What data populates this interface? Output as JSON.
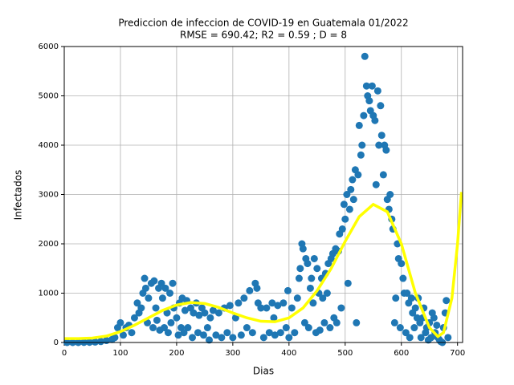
{
  "chart_data": {
    "type": "scatter",
    "title": "Prediccion de infeccion de COVID-19 en Guatemala 01/2022",
    "subtitle": "RMSE = 690.42; R2 = 0.59 ; D = 8",
    "x_label": "Dias",
    "y_label": "Infectados",
    "xlim": [
      0,
      709
    ],
    "ylim": [
      0,
      6000
    ],
    "xticks": [
      0,
      100,
      200,
      300,
      400,
      500,
      600,
      700
    ],
    "yticks": [
      0,
      1000,
      2000,
      3000,
      4000,
      5000,
      6000
    ],
    "grid": true,
    "series": [
      {
        "type": "scatter",
        "color": "#1f77b4",
        "x": [
          5,
          15,
          25,
          35,
          45,
          55,
          65,
          75,
          85,
          90,
          95,
          100,
          105,
          110,
          115,
          120,
          125,
          130,
          133,
          137,
          140,
          143,
          145,
          148,
          150,
          155,
          158,
          160,
          163,
          165,
          168,
          170,
          173,
          175,
          178,
          180,
          183,
          185,
          188,
          190,
          193,
          195,
          200,
          203,
          205,
          208,
          210,
          213,
          215,
          218,
          220,
          225,
          228,
          230,
          235,
          238,
          240,
          245,
          248,
          250,
          255,
          258,
          260,
          265,
          270,
          275,
          280,
          285,
          290,
          295,
          300,
          305,
          310,
          315,
          320,
          325,
          330,
          335,
          340,
          343,
          345,
          350,
          355,
          360,
          365,
          370,
          373,
          375,
          380,
          385,
          390,
          395,
          398,
          400,
          405,
          410,
          415,
          418,
          420,
          423,
          425,
          428,
          430,
          433,
          435,
          438,
          440,
          443,
          445,
          448,
          450,
          453,
          455,
          458,
          460,
          463,
          465,
          468,
          470,
          473,
          475,
          478,
          480,
          483,
          485,
          488,
          490,
          493,
          495,
          498,
          500,
          503,
          505,
          508,
          510,
          513,
          515,
          518,
          520,
          523,
          525,
          528,
          530,
          533,
          535,
          538,
          540,
          543,
          545,
          548,
          550,
          553,
          555,
          558,
          560,
          563,
          565,
          568,
          570,
          573,
          575,
          578,
          580,
          583,
          585,
          588,
          590,
          593,
          595,
          598,
          600,
          603,
          605,
          608,
          610,
          613,
          615,
          618,
          620,
          623,
          625,
          628,
          630,
          633,
          635,
          638,
          640,
          643,
          645,
          648,
          650,
          653,
          655,
          658,
          660,
          663,
          665,
          668,
          670,
          673,
          675,
          678,
          680,
          683
        ],
        "values": [
          0,
          0,
          0,
          2,
          5,
          10,
          20,
          40,
          60,
          100,
          300,
          400,
          150,
          300,
          350,
          200,
          500,
          800,
          600,
          700,
          1000,
          1300,
          1100,
          400,
          900,
          1200,
          300,
          1250,
          700,
          450,
          1100,
          250,
          1200,
          900,
          300,
          1100,
          600,
          200,
          1000,
          400,
          1200,
          700,
          500,
          150,
          800,
          300,
          900,
          200,
          650,
          850,
          300,
          700,
          100,
          600,
          800,
          200,
          550,
          700,
          150,
          600,
          300,
          50,
          500,
          650,
          150,
          600,
          100,
          700,
          200,
          750,
          100,
          500,
          800,
          150,
          900,
          300,
          1050,
          200,
          1200,
          1100,
          800,
          700,
          100,
          700,
          200,
          800,
          500,
          150,
          750,
          200,
          800,
          300,
          1050,
          100,
          700,
          200,
          900,
          1300,
          1500,
          2000,
          1900,
          400,
          1700,
          1600,
          300,
          1100,
          1300,
          800,
          1700,
          200,
          1500,
          1000,
          250,
          1300,
          900,
          400,
          1400,
          1000,
          1600,
          300,
          1700,
          1800,
          500,
          1900,
          400,
          1850,
          2200,
          700,
          2300,
          2800,
          2500,
          3000,
          1200,
          2700,
          3100,
          3300,
          2900,
          3500,
          400,
          3400,
          4400,
          3800,
          4000,
          4600,
          5800,
          5200,
          5000,
          4900,
          4700,
          5200,
          4600,
          4500,
          3200,
          5100,
          4000,
          4800,
          4200,
          3400,
          4000,
          3900,
          2900,
          2700,
          3000,
          2500,
          2300,
          400,
          900,
          2000,
          1700,
          300,
          1600,
          1300,
          1000,
          200,
          1000,
          800,
          100,
          900,
          600,
          300,
          700,
          500,
          900,
          400,
          100,
          500,
          700,
          200,
          300,
          50,
          400,
          100,
          600,
          500,
          200,
          350,
          100,
          50,
          20,
          0,
          300,
          600,
          850,
          100
        ]
      },
      {
        "type": "line",
        "color": "#ffff00",
        "x": [
          0,
          25,
          50,
          75,
          100,
          125,
          150,
          175,
          200,
          225,
          250,
          275,
          300,
          325,
          350,
          375,
          400,
          425,
          450,
          475,
          500,
          525,
          550,
          575,
          600,
          625,
          650,
          665,
          675,
          690,
          700,
          707
        ],
        "values": [
          80,
          80,
          90,
          130,
          220,
          350,
          500,
          650,
          760,
          810,
          790,
          710,
          600,
          500,
          430,
          420,
          500,
          700,
          1050,
          1500,
          2050,
          2550,
          2800,
          2650,
          2000,
          1000,
          300,
          120,
          200,
          900,
          2000,
          3050
        ]
      }
    ]
  }
}
